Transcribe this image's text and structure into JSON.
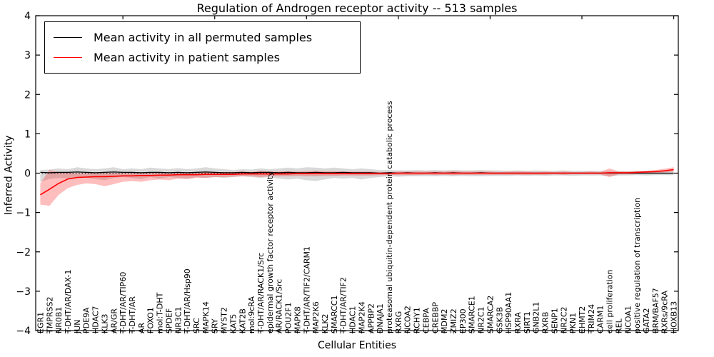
{
  "title": "Regulation of Androgen receptor activity -- 513 samples",
  "legend": {
    "entries": [
      {
        "label": "Mean activity in all permuted samples",
        "color": "#000000"
      },
      {
        "label": "Mean activity in patient samples",
        "color": "#ff0000"
      }
    ]
  },
  "colors": {
    "permuted_line": "#000000",
    "patient_line": "#ff0000",
    "permuted_band": "rgba(130,130,130,0.30)",
    "patient_band": "rgba(255,40,40,0.30)",
    "axis": "#000000"
  },
  "chart_data": {
    "type": "line",
    "title": "Regulation of Androgen receptor activity -- 513 samples",
    "xlabel": "Cellular Entities",
    "ylabel": "Inferred Activity",
    "ylim": [
      -4,
      4
    ],
    "yticks": [
      4,
      3,
      2,
      1,
      0,
      -1,
      -2,
      -3,
      -4
    ],
    "zero_line_style": "dotted",
    "grid": false,
    "legend_position": "upper left",
    "top_tick_indices": [
      9,
      19,
      29,
      39,
      49,
      59,
      69
    ],
    "categories": [
      "EGR1",
      "TMPRSS2",
      "NR0B1",
      "T-DHT/AR/DAX-1",
      "JUN",
      "PDE9A",
      "HDAC7",
      "KLK3",
      "AR/GR",
      "T-DHT/AR/TIP60",
      "T-DHT/AR",
      "AR",
      "FOXO1",
      "mol:T-DHT",
      "SPDEF",
      "NR3C1",
      "T-DHT/AR/Hsp90",
      "SRC",
      "MAPK14",
      "SRY",
      "MYST2",
      "KAT5",
      "KAT2B",
      "mol:9cRA",
      "T-DHT/AR/RACK1/Src",
      "epidermal growth factor receptor activity",
      "AR/RACK1/Src",
      "POU2F1",
      "MAPK8",
      "T-DHT/AR/TIF2/CARM1",
      "MAP2K6",
      "KLK2",
      "SMARCC1",
      "T-DHT/AR/TIF2",
      "HDAC1",
      "MAP2K4",
      "APPBP2",
      "DNAJA1",
      "proteasomal ubiquitin-dependent protein catabolic process",
      "RXRG",
      "NCOA2",
      "RCHY1",
      "CEBPA",
      "CREBBP",
      "MDM2",
      "ZMIZ2",
      "EP300",
      "SMARCE1",
      "NR2C1",
      "SMARCA2",
      "GSK3B",
      "HSP90AA1",
      "RXRA",
      "SIRT1",
      "GNB2L1",
      "RXRB",
      "SENP1",
      "NR2C2",
      "PKN1",
      "EHMT2",
      "TRIM24",
      "CARM1",
      "cell proliferation",
      "REL",
      "NCOA1",
      "positive regulation of transcription",
      "GATA2",
      "BRM/BAF57",
      "RXRs/9cRA",
      "HOXB13"
    ],
    "series": [
      {
        "name": "Mean activity in all permuted samples",
        "color": "#000000",
        "band_fill": "rgba(130,130,130,0.30)",
        "values": [
          0.02,
          0.01,
          0.02,
          0.02,
          0.03,
          0.02,
          0.01,
          0.02,
          0.03,
          0.02,
          0.02,
          0.01,
          0.02,
          0.02,
          0.01,
          0.02,
          0.01,
          0.02,
          0.03,
          0.02,
          0.01,
          0.01,
          0.02,
          0.01,
          0.02,
          0.02,
          0.01,
          0.02,
          0.01,
          0.01,
          0.02,
          0.01,
          0.01,
          0.02,
          0.01,
          0.01,
          0.01,
          0.0,
          0.01,
          0.0,
          0.01,
          0.0,
          0.0,
          0.01,
          0.0,
          0.01,
          0.0,
          0.0,
          0.01,
          0.0,
          0.0,
          0.0,
          0.0,
          0.0,
          0.0,
          0.0,
          0.0,
          0.0,
          0.0,
          0.0,
          0.0,
          0.0,
          0.0,
          0.0,
          0.0,
          0.0,
          0.0,
          0.0,
          0.0,
          0.0
        ],
        "band_upper": [
          0.08,
          0.09,
          0.12,
          0.1,
          0.15,
          0.12,
          0.1,
          0.12,
          0.15,
          0.1,
          0.12,
          0.1,
          0.14,
          0.12,
          0.1,
          0.13,
          0.1,
          0.12,
          0.15,
          0.12,
          0.1,
          0.08,
          0.1,
          0.09,
          0.12,
          0.1,
          0.12,
          0.14,
          0.12,
          0.15,
          0.14,
          0.12,
          0.14,
          0.12,
          0.1,
          0.12,
          0.1,
          0.08,
          0.08,
          0.07,
          0.07,
          0.08,
          0.07,
          0.08,
          0.07,
          0.08,
          0.07,
          0.07,
          0.08,
          0.07,
          0.07,
          0.06,
          0.07,
          0.06,
          0.07,
          0.06,
          0.06,
          0.07,
          0.06,
          0.06,
          0.06,
          0.06,
          0.06,
          0.06,
          0.05,
          0.06,
          0.05,
          0.05,
          0.05,
          0.05
        ],
        "band_lower": [
          -0.22,
          -0.15,
          -0.12,
          -0.14,
          -0.1,
          -0.12,
          -0.15,
          -0.18,
          -0.12,
          -0.1,
          -0.12,
          -0.15,
          -0.1,
          -0.14,
          -0.1,
          -0.12,
          -0.14,
          -0.1,
          -0.12,
          -0.1,
          -0.12,
          -0.1,
          -0.08,
          -0.1,
          -0.12,
          -0.1,
          -0.14,
          -0.16,
          -0.14,
          -0.18,
          -0.2,
          -0.16,
          -0.12,
          -0.14,
          -0.12,
          -0.16,
          -0.12,
          -0.1,
          -0.08,
          -0.09,
          -0.08,
          -0.08,
          -0.08,
          -0.08,
          -0.07,
          -0.08,
          -0.07,
          -0.08,
          -0.08,
          -0.07,
          -0.07,
          -0.07,
          -0.06,
          -0.07,
          -0.06,
          -0.07,
          -0.06,
          -0.06,
          -0.07,
          -0.06,
          -0.06,
          -0.06,
          -0.08,
          -0.06,
          -0.06,
          -0.05,
          -0.06,
          -0.05,
          -0.05,
          -0.05
        ]
      },
      {
        "name": "Mean activity in patient samples",
        "color": "#ff0000",
        "band_fill": "rgba(255,40,40,0.30)",
        "values": [
          -0.55,
          -0.41,
          -0.26,
          -0.15,
          -0.11,
          -0.1,
          -0.09,
          -0.09,
          -0.08,
          -0.07,
          -0.07,
          -0.06,
          -0.06,
          -0.05,
          -0.05,
          -0.04,
          -0.04,
          -0.04,
          -0.03,
          -0.03,
          -0.03,
          -0.03,
          -0.02,
          -0.02,
          -0.02,
          -0.02,
          -0.02,
          -0.02,
          -0.01,
          -0.01,
          -0.01,
          -0.01,
          -0.01,
          -0.01,
          -0.01,
          -0.01,
          -0.01,
          -0.01,
          -0.01,
          0.0,
          0.0,
          0.0,
          0.0,
          0.0,
          0.0,
          0.0,
          0.0,
          0.0,
          0.0,
          0.0,
          0.0,
          0.0,
          0.0,
          0.0,
          0.0,
          0.0,
          0.0,
          0.0,
          0.0,
          0.0,
          0.0,
          0.0,
          0.01,
          0.01,
          0.01,
          0.02,
          0.03,
          0.04,
          0.06,
          0.09
        ],
        "band_upper": [
          -0.26,
          0.08,
          0.03,
          0.02,
          -0.01,
          0.0,
          -0.01,
          0.0,
          0.01,
          0.0,
          0.01,
          0.0,
          0.02,
          0.01,
          0.02,
          0.02,
          0.02,
          0.03,
          0.03,
          0.02,
          0.03,
          0.03,
          0.04,
          0.03,
          0.06,
          0.04,
          0.04,
          0.05,
          0.04,
          0.05,
          0.06,
          0.05,
          0.05,
          0.04,
          0.04,
          0.04,
          0.04,
          0.03,
          0.03,
          0.04,
          0.04,
          0.04,
          0.04,
          0.04,
          0.04,
          0.05,
          0.04,
          0.04,
          0.04,
          0.04,
          0.03,
          0.04,
          0.04,
          0.04,
          0.03,
          0.04,
          0.03,
          0.04,
          0.03,
          0.03,
          0.04,
          0.03,
          0.12,
          0.04,
          0.04,
          0.05,
          0.06,
          0.08,
          0.11,
          0.15
        ],
        "band_lower": [
          -0.8,
          -0.83,
          -0.55,
          -0.38,
          -0.3,
          -0.26,
          -0.28,
          -0.33,
          -0.28,
          -0.22,
          -0.2,
          -0.22,
          -0.18,
          -0.16,
          -0.18,
          -0.14,
          -0.15,
          -0.12,
          -0.12,
          -0.1,
          -0.1,
          -0.09,
          -0.08,
          -0.08,
          -0.1,
          -0.08,
          -0.08,
          -0.08,
          -0.07,
          -0.08,
          -0.08,
          -0.07,
          -0.07,
          -0.06,
          -0.06,
          -0.06,
          -0.06,
          -0.05,
          -0.05,
          -0.05,
          -0.05,
          -0.05,
          -0.04,
          -0.05,
          -0.04,
          -0.05,
          -0.04,
          -0.04,
          -0.04,
          -0.04,
          -0.04,
          -0.04,
          -0.04,
          -0.04,
          -0.04,
          -0.04,
          -0.03,
          -0.04,
          -0.03,
          -0.03,
          -0.03,
          -0.03,
          -0.1,
          -0.03,
          -0.03,
          -0.02,
          -0.01,
          0.0,
          0.02,
          0.04
        ]
      }
    ]
  }
}
